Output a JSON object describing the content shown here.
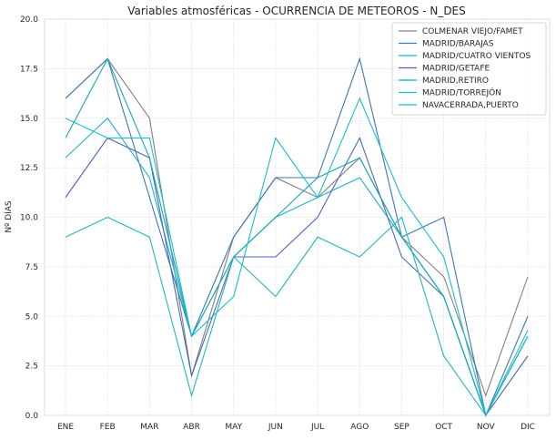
{
  "chart_data": {
    "type": "line",
    "title": "Variables atmosféricas - OCURRENCIA DE METEOROS - N_DES",
    "xlabel": "",
    "ylabel": "Nº DÍAS",
    "ylim": [
      0,
      20
    ],
    "yticks": [
      "0.0",
      "2.5",
      "5.0",
      "7.5",
      "10.0",
      "12.5",
      "15.0",
      "17.5",
      "20.0"
    ],
    "grid": true,
    "legend_position": "top-right",
    "categories": [
      "ENE",
      "FEB",
      "MAR",
      "ABR",
      "MAY",
      "JUN",
      "JUL",
      "AGO",
      "SEP",
      "OCT",
      "NOV",
      "DIC"
    ],
    "series": [
      {
        "name": "COLMENAR VIEJO/FAMET",
        "color": "#808080",
        "values": [
          16,
          18,
          15,
          2,
          9,
          12,
          11,
          13,
          9,
          7,
          1,
          7
        ]
      },
      {
        "name": "MADRID/BARAJAS",
        "color": "#3a78b5",
        "values": [
          16,
          18,
          11,
          4,
          9,
          12,
          12,
          18,
          9,
          10,
          0,
          5
        ]
      },
      {
        "name": "MADRID/CUATRO VIENTOS",
        "color": "#1fb3d2",
        "values": [
          13,
          15,
          12,
          4,
          8,
          10,
          11,
          12,
          9,
          6,
          0,
          4
        ]
      },
      {
        "name": "MADRID/GETAFE",
        "color": "#4a67b7",
        "values": [
          11,
          14,
          13,
          2,
          8,
          8,
          10,
          14,
          8,
          6,
          0,
          3
        ]
      },
      {
        "name": "MADRID,RETIRO",
        "color": "#13a8b8",
        "values": [
          14,
          18,
          13,
          4,
          8,
          10,
          12,
          13,
          9,
          6,
          0,
          4
        ]
      },
      {
        "name": "MADRID/TORREJÓN",
        "color": "#17becf",
        "values": [
          15,
          14,
          14,
          4,
          6,
          14,
          11,
          16,
          11,
          8,
          0,
          4.3
        ]
      },
      {
        "name": "NAVACERRADA,PUERTO",
        "color": "#22b8c0",
        "values": [
          9,
          10,
          9,
          1,
          8,
          6,
          9,
          8,
          10,
          3,
          0,
          4
        ]
      }
    ]
  }
}
